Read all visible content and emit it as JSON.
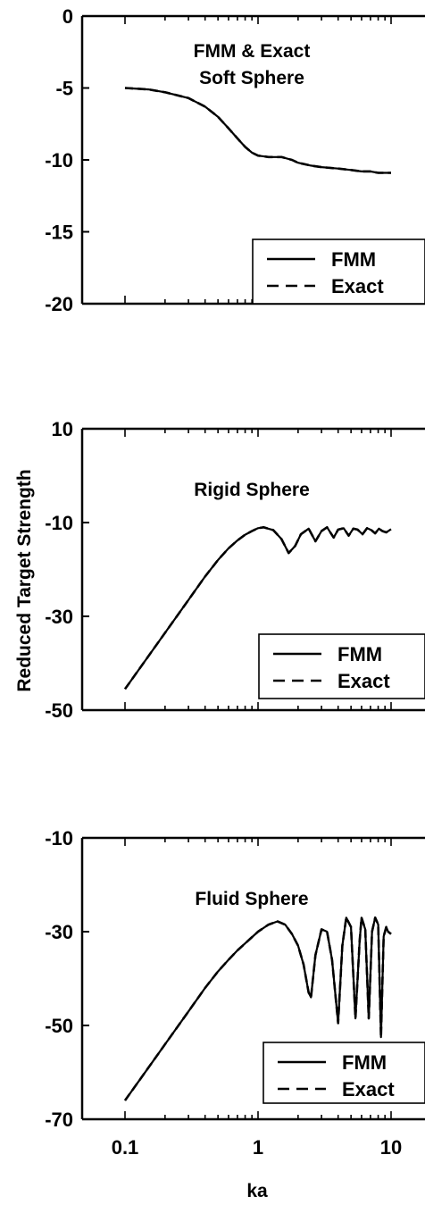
{
  "figure": {
    "ylabel": "Reduced Target Strength",
    "xlabel": "ka",
    "x_scale": "log",
    "xlim": [
      0.1,
      10
    ],
    "x_ticks": [
      "0.1",
      "1",
      "10"
    ]
  },
  "chart_data": [
    {
      "type": "line",
      "title_lines": [
        "FMM & Exact",
        "Soft Sphere"
      ],
      "ylim": [
        -20,
        0
      ],
      "y_ticks": [
        0,
        -5,
        -10,
        -15,
        -20
      ],
      "x_scale": "log",
      "legend": {
        "placement": "bottom-right",
        "entries": [
          "FMM",
          "Exact"
        ]
      },
      "series": [
        {
          "name": "FMM",
          "style": "solid",
          "x": [
            0.1,
            0.15,
            0.2,
            0.3,
            0.4,
            0.5,
            0.6,
            0.7,
            0.8,
            0.9,
            1.0,
            1.2,
            1.5,
            1.8,
            2,
            2.5,
            3,
            4,
            5,
            6,
            7,
            8,
            10
          ],
          "y": [
            -5.0,
            -5.1,
            -5.3,
            -5.7,
            -6.3,
            -7.0,
            -7.8,
            -8.5,
            -9.1,
            -9.5,
            -9.7,
            -9.8,
            -9.8,
            -10.0,
            -10.2,
            -10.4,
            -10.5,
            -10.6,
            -10.7,
            -10.8,
            -10.8,
            -10.9,
            -10.9
          ]
        },
        {
          "name": "Exact",
          "style": "dashed",
          "x": [
            0.1,
            0.15,
            0.2,
            0.3,
            0.4,
            0.5,
            0.6,
            0.7,
            0.8,
            0.9,
            1.0,
            1.2,
            1.5,
            1.8,
            2,
            2.5,
            3,
            4,
            5,
            6,
            7,
            8,
            10
          ],
          "y": [
            -5.0,
            -5.1,
            -5.3,
            -5.7,
            -6.3,
            -7.0,
            -7.8,
            -8.5,
            -9.1,
            -9.5,
            -9.7,
            -9.8,
            -9.8,
            -10.0,
            -10.2,
            -10.4,
            -10.5,
            -10.6,
            -10.7,
            -10.8,
            -10.8,
            -10.9,
            -10.9
          ]
        }
      ]
    },
    {
      "type": "line",
      "title_lines": [
        "Rigid Sphere"
      ],
      "ylim": [
        -50,
        10
      ],
      "y_ticks": [
        10,
        -10,
        -30,
        -50
      ],
      "x_scale": "log",
      "legend": {
        "placement": "bottom-right",
        "entries": [
          "FMM",
          "Exact"
        ]
      },
      "series": [
        {
          "name": "FMM",
          "style": "solid",
          "x": [
            0.1,
            0.15,
            0.2,
            0.3,
            0.4,
            0.5,
            0.6,
            0.7,
            0.8,
            0.9,
            1.0,
            1.1,
            1.3,
            1.5,
            1.7,
            1.9,
            2.1,
            2.4,
            2.7,
            3.0,
            3.3,
            3.7,
            4.0,
            4.4,
            4.8,
            5.2,
            5.6,
            6.1,
            6.6,
            7.1,
            7.6,
            8.1,
            8.6,
            9.2,
            10
          ],
          "y": [
            -45.5,
            -38.5,
            -33.5,
            -26.5,
            -21.5,
            -18.0,
            -15.5,
            -13.8,
            -12.6,
            -11.8,
            -11.2,
            -11.0,
            -11.6,
            -13.5,
            -16.5,
            -15.0,
            -12.5,
            -11.3,
            -14.0,
            -11.8,
            -11.0,
            -13.2,
            -11.5,
            -11.2,
            -12.8,
            -11.3,
            -11.5,
            -12.5,
            -11.2,
            -11.6,
            -12.3,
            -11.3,
            -11.8,
            -12.1,
            -11.4
          ]
        },
        {
          "name": "Exact",
          "style": "dashed",
          "x": [
            0.1,
            0.15,
            0.2,
            0.3,
            0.4,
            0.5,
            0.6,
            0.7,
            0.8,
            0.9,
            1.0,
            1.1,
            1.3,
            1.5,
            1.7,
            1.9,
            2.1,
            2.4,
            2.7,
            3.0,
            3.3,
            3.7,
            4.0,
            4.4,
            4.8,
            5.2,
            5.6,
            6.1,
            6.6,
            7.1,
            7.6,
            8.1,
            8.6,
            9.2,
            10
          ],
          "y": [
            -45.5,
            -38.5,
            -33.5,
            -26.5,
            -21.5,
            -18.0,
            -15.5,
            -13.8,
            -12.6,
            -11.8,
            -11.2,
            -11.0,
            -11.6,
            -13.5,
            -16.5,
            -15.0,
            -12.5,
            -11.3,
            -14.0,
            -11.8,
            -11.0,
            -13.2,
            -11.5,
            -11.2,
            -12.8,
            -11.3,
            -11.5,
            -12.5,
            -11.2,
            -11.6,
            -12.3,
            -11.3,
            -11.8,
            -12.1,
            -11.4
          ]
        }
      ]
    },
    {
      "type": "line",
      "title_lines": [
        "Fluid Sphere"
      ],
      "ylim": [
        -70,
        -10
      ],
      "y_ticks": [
        -10,
        -30,
        -50,
        -70
      ],
      "x_scale": "log",
      "legend": {
        "placement": "bottom-right",
        "entries": [
          "FMM",
          "Exact"
        ]
      },
      "series": [
        {
          "name": "FMM",
          "style": "solid",
          "x": [
            0.1,
            0.15,
            0.2,
            0.3,
            0.4,
            0.5,
            0.6,
            0.7,
            0.8,
            1.0,
            1.2,
            1.4,
            1.6,
            1.8,
            2.0,
            2.2,
            2.4,
            2.5,
            2.7,
            3.0,
            3.3,
            3.6,
            4.0,
            4.3,
            4.6,
            5.0,
            5.4,
            5.8,
            6.0,
            6.4,
            6.8,
            7.2,
            7.6,
            8.0,
            8.4,
            8.8,
            9.2,
            9.5,
            10
          ],
          "y": [
            -66.0,
            -59.0,
            -54.0,
            -47.0,
            -42.0,
            -38.5,
            -36.0,
            -34.0,
            -32.5,
            -30.0,
            -28.5,
            -27.8,
            -28.5,
            -30.5,
            -33.0,
            -37.0,
            -43.0,
            -44.0,
            -35.0,
            -29.5,
            -30.0,
            -36.0,
            -49.5,
            -33.0,
            -27.0,
            -29.0,
            -48.5,
            -32.0,
            -27.0,
            -29.5,
            -48.5,
            -30.0,
            -27.0,
            -28.5,
            -52.5,
            -31.0,
            -29.0,
            -30.0,
            -30.5
          ]
        },
        {
          "name": "Exact",
          "style": "dashed",
          "x": [
            0.1,
            0.15,
            0.2,
            0.3,
            0.4,
            0.5,
            0.6,
            0.7,
            0.8,
            1.0,
            1.2,
            1.4,
            1.6,
            1.8,
            2.0,
            2.2,
            2.4,
            2.5,
            2.7,
            3.0,
            3.3,
            3.6,
            4.0,
            4.3,
            4.6,
            5.0,
            5.4,
            5.8,
            6.0,
            6.4,
            6.8,
            7.2,
            7.6,
            8.0,
            8.4,
            8.8,
            9.2,
            9.5,
            10
          ],
          "y": [
            -66.0,
            -59.0,
            -54.0,
            -47.0,
            -42.0,
            -38.5,
            -36.0,
            -34.0,
            -32.5,
            -30.0,
            -28.5,
            -27.8,
            -28.5,
            -30.5,
            -33.0,
            -37.0,
            -43.0,
            -44.0,
            -35.0,
            -29.5,
            -30.0,
            -36.0,
            -49.5,
            -33.0,
            -27.0,
            -29.0,
            -48.5,
            -32.0,
            -27.0,
            -29.5,
            -48.5,
            -30.0,
            -27.0,
            -28.5,
            -52.5,
            -31.0,
            -29.0,
            -30.0,
            -30.5
          ]
        }
      ]
    }
  ]
}
